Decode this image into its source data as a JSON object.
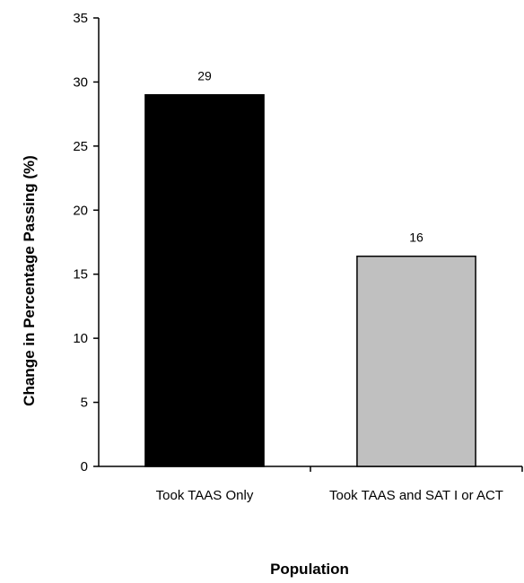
{
  "chart_data": {
    "type": "bar",
    "categories": [
      "Took TAAS Only",
      "Took TAAS and SAT I or ACT"
    ],
    "category_lines": [
      [
        "Took TAAS Only"
      ],
      [
        "Took TAAS and SAT I or ACT"
      ]
    ],
    "values": [
      29,
      16.4
    ],
    "data_labels": [
      "29",
      "16"
    ],
    "bar_colors": [
      "#000000",
      "#c0c0c0"
    ],
    "xlabel": "Population",
    "ylabel": "Change in Percentage Passing (%)",
    "ylim": [
      0,
      35
    ],
    "yticks": [
      0,
      5,
      10,
      15,
      20,
      25,
      30,
      35
    ],
    "grid": false
  }
}
